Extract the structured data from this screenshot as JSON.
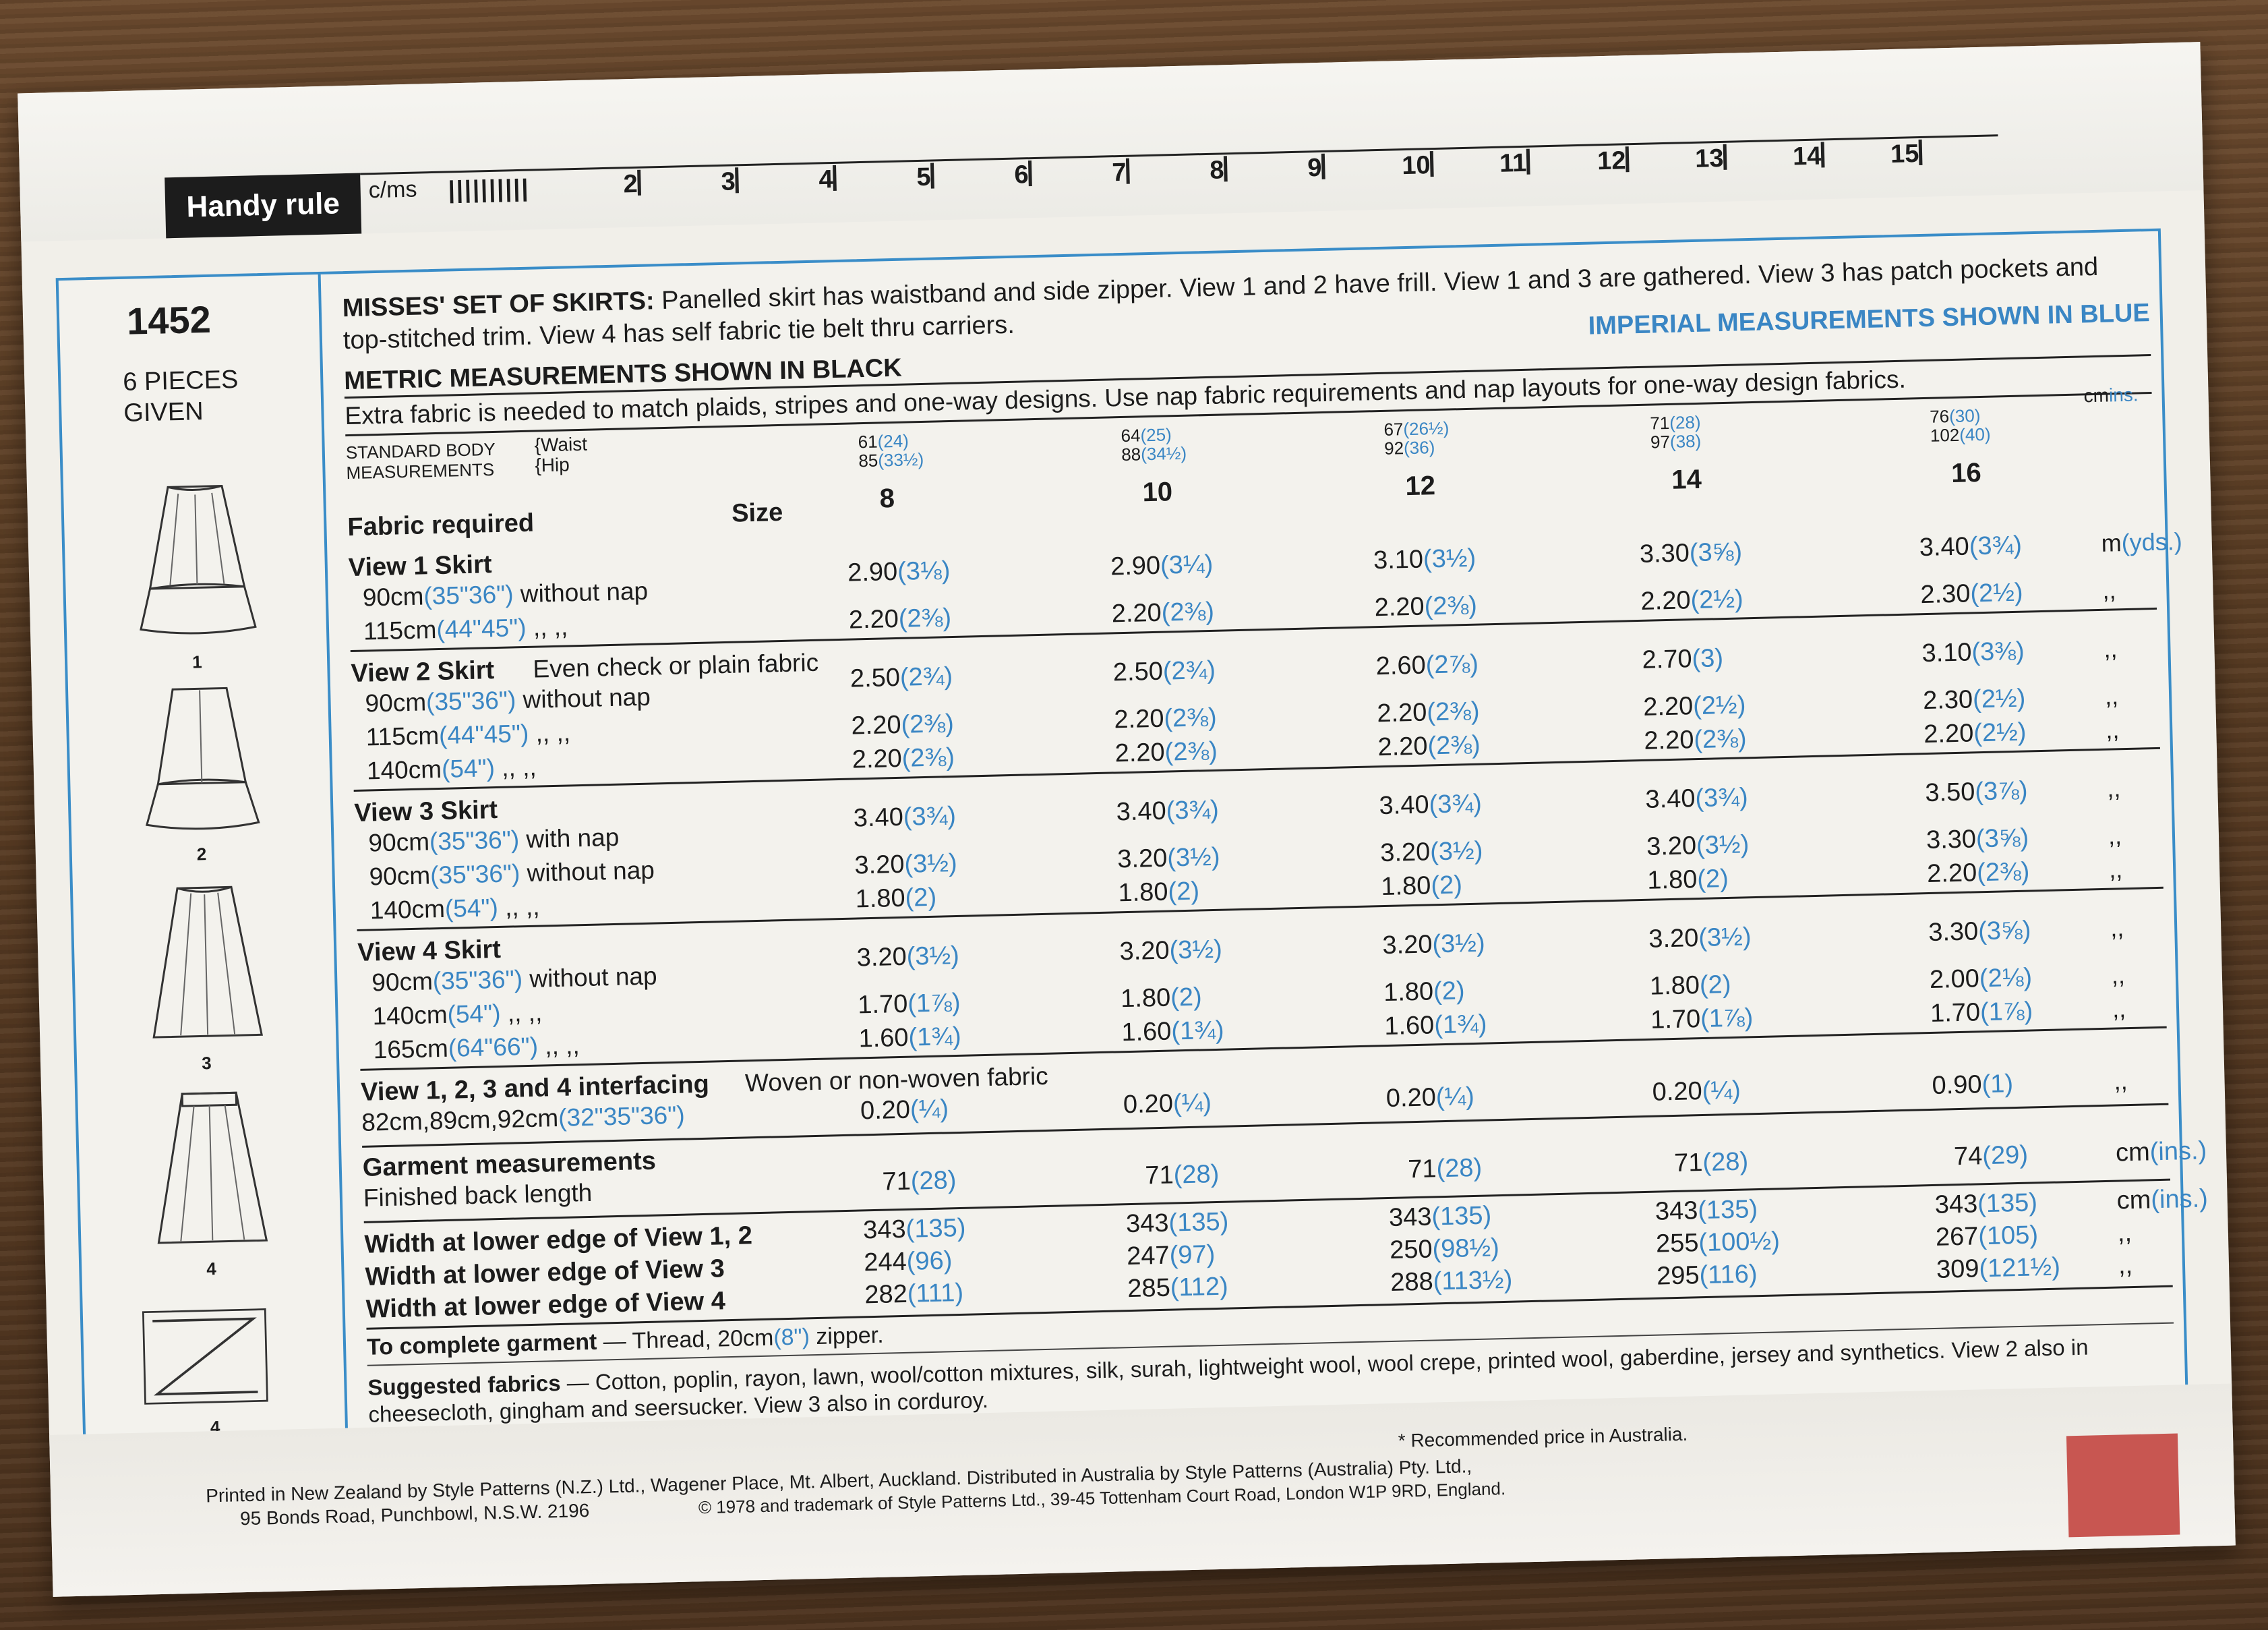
{
  "ruler": {
    "label": "Handy rule",
    "unit": "c/ms",
    "ticks": [
      "2",
      "3",
      "4",
      "5",
      "6",
      "7",
      "8",
      "9",
      "10",
      "11",
      "12",
      "13",
      "14",
      "15"
    ]
  },
  "pattern": {
    "number": "1452",
    "pieces": "6 PIECES GIVEN",
    "view_labels": [
      "1",
      "2",
      "3",
      "4",
      "4"
    ]
  },
  "description": {
    "heading": "MISSES' SET OF SKIRTS:",
    "line1": "Panelled skirt has waistband and side zipper. View 1 and 2 have frill. View 1 and 3 are gathered. View 3 has patch pockets and",
    "line2": "top-stitched trim. View 4 has self fabric tie belt thru carriers.",
    "imperial_note": "IMPERIAL MEASUREMENTS SHOWN IN BLUE",
    "metric_note": "METRIC MEASUREMENTS SHOWN IN BLACK",
    "extra_fabric": "Extra fabric  is needed to match plaids, stripes and one-way designs. Use nap fabric requirements and nap layouts for one-way design fabrics."
  },
  "body_measurements": {
    "label1": "STANDARD BODY",
    "label2": "MEASUREMENTS",
    "waist": "Waist",
    "hip": "Hip",
    "unit_cm": "cm",
    "unit_in": "ins.",
    "sizes": [
      {
        "waist_cm": "61",
        "waist_in": "(24)",
        "hip_cm": "85",
        "hip_in": "(33½)",
        "size": "8"
      },
      {
        "waist_cm": "64",
        "waist_in": "(25)",
        "hip_cm": "88",
        "hip_in": "(34½)",
        "size": "10"
      },
      {
        "waist_cm": "67",
        "waist_in": "(26½)",
        "hip_cm": "92",
        "hip_in": "(36)",
        "size": "12"
      },
      {
        "waist_cm": "71",
        "waist_in": "(28)",
        "hip_cm": "97",
        "hip_in": "(38)",
        "size": "14"
      },
      {
        "waist_cm": "76",
        "waist_in": "(30)",
        "hip_cm": "102",
        "hip_in": "(40)",
        "size": "16"
      }
    ]
  },
  "fabric_required": {
    "label": "Fabric required",
    "size_label": "Size",
    "unit_m": "m",
    "unit_yds": "(yds.)",
    "ditto": ",,",
    "views": [
      {
        "title": "View 1  Skirt",
        "note": "",
        "rows": [
          {
            "width_cm": "90cm",
            "width_in": "(35\"36\")",
            "nap": "without nap",
            "vals": [
              [
                "2.90",
                "(3⅛)"
              ],
              [
                "2.90",
                "(3¼)"
              ],
              [
                "3.10",
                "(3½)"
              ],
              [
                "3.30",
                "(3⅝)"
              ],
              [
                "3.40",
                "(3¾)"
              ]
            ]
          },
          {
            "width_cm": "115cm",
            "width_in": "(44\"45\")",
            "nap": ",,       ,,",
            "vals": [
              [
                "2.20",
                "(2⅜)"
              ],
              [
                "2.20",
                "(2⅜)"
              ],
              [
                "2.20",
                "(2⅜)"
              ],
              [
                "2.20",
                "(2½)"
              ],
              [
                "2.30",
                "(2½)"
              ]
            ]
          }
        ]
      },
      {
        "title": "View 2  Skirt",
        "note": "Even check or plain fabric",
        "rows": [
          {
            "width_cm": "90cm",
            "width_in": "(35\"36\")",
            "nap": "without nap",
            "vals": [
              [
                "2.50",
                "(2¾)"
              ],
              [
                "2.50",
                "(2¾)"
              ],
              [
                "2.60",
                "(2⅞)"
              ],
              [
                "2.70",
                "(3)"
              ],
              [
                "3.10",
                "(3⅜)"
              ]
            ]
          },
          {
            "width_cm": "115cm",
            "width_in": "(44\"45\")",
            "nap": ",,       ,,",
            "vals": [
              [
                "2.20",
                "(2⅜)"
              ],
              [
                "2.20",
                "(2⅜)"
              ],
              [
                "2.20",
                "(2⅜)"
              ],
              [
                "2.20",
                "(2½)"
              ],
              [
                "2.30",
                "(2½)"
              ]
            ]
          },
          {
            "width_cm": "140cm",
            "width_in": "(54\")",
            "nap": ",,       ,,",
            "vals": [
              [
                "2.20",
                "(2⅜)"
              ],
              [
                "2.20",
                "(2⅜)"
              ],
              [
                "2.20",
                "(2⅜)"
              ],
              [
                "2.20",
                "(2⅜)"
              ],
              [
                "2.20",
                "(2½)"
              ]
            ]
          }
        ]
      },
      {
        "title": "View 3  Skirt",
        "note": "",
        "rows": [
          {
            "width_cm": "90cm",
            "width_in": "(35\"36\")",
            "nap": "with nap",
            "vals": [
              [
                "3.40",
                "(3¾)"
              ],
              [
                "3.40",
                "(3¾)"
              ],
              [
                "3.40",
                "(3¾)"
              ],
              [
                "3.40",
                "(3¾)"
              ],
              [
                "3.50",
                "(3⅞)"
              ]
            ]
          },
          {
            "width_cm": "90cm",
            "width_in": "(35\"36\")",
            "nap": "without nap",
            "vals": [
              [
                "3.20",
                "(3½)"
              ],
              [
                "3.20",
                "(3½)"
              ],
              [
                "3.20",
                "(3½)"
              ],
              [
                "3.20",
                "(3½)"
              ],
              [
                "3.30",
                "(3⅝)"
              ]
            ]
          },
          {
            "width_cm": "140cm",
            "width_in": "(54\")",
            "nap": ",,       ,,",
            "vals": [
              [
                "1.80",
                "(2)"
              ],
              [
                "1.80",
                "(2)"
              ],
              [
                "1.80",
                "(2)"
              ],
              [
                "1.80",
                "(2)"
              ],
              [
                "2.20",
                "(2⅜)"
              ]
            ]
          }
        ]
      },
      {
        "title": "View 4  Skirt",
        "note": "",
        "rows": [
          {
            "width_cm": "90cm",
            "width_in": "(35\"36\")",
            "nap": "without nap",
            "vals": [
              [
                "3.20",
                "(3½)"
              ],
              [
                "3.20",
                "(3½)"
              ],
              [
                "3.20",
                "(3½)"
              ],
              [
                "3.20",
                "(3½)"
              ],
              [
                "3.30",
                "(3⅝)"
              ]
            ]
          },
          {
            "width_cm": "140cm",
            "width_in": "(54\")",
            "nap": ",,       ,,",
            "vals": [
              [
                "1.70",
                "(1⅞)"
              ],
              [
                "1.80",
                "(2)"
              ],
              [
                "1.80",
                "(2)"
              ],
              [
                "1.80",
                "(2)"
              ],
              [
                "2.00",
                "(2⅛)"
              ]
            ]
          },
          {
            "width_cm": "165cm",
            "width_in": "(64\"66\")",
            "nap": ",,       ,,",
            "vals": [
              [
                "1.60",
                "(1¾)"
              ],
              [
                "1.60",
                "(1¾)"
              ],
              [
                "1.60",
                "(1¾)"
              ],
              [
                "1.70",
                "(1⅞)"
              ],
              [
                "1.70",
                "(1⅞)"
              ]
            ]
          }
        ]
      }
    ]
  },
  "interfacing": {
    "title": "View 1, 2, 3 and 4 interfacing",
    "note": "Woven or non-woven fabric",
    "width_cm": "82cm,89cm,92cm",
    "width_in": "(32\"35\"36\")",
    "vals": [
      [
        "0.20",
        "(¼)"
      ],
      [
        "0.20",
        "(¼)"
      ],
      [
        "0.20",
        "(¼)"
      ],
      [
        "0.20",
        "(¼)"
      ],
      [
        "0.90",
        "(1)"
      ]
    ]
  },
  "garment": {
    "title": "Garment measurements",
    "back_length_label": "Finished back length",
    "back_length": [
      [
        "71",
        "(28)"
      ],
      [
        "71",
        "(28)"
      ],
      [
        "71",
        "(28)"
      ],
      [
        "71",
        "(28)"
      ],
      [
        "74",
        "(29)"
      ]
    ],
    "unit_cm": "cm",
    "unit_in": "(ins.)",
    "widths": [
      {
        "label": "Width at lower edge of View 1, 2",
        "vals": [
          [
            "343",
            "(135)"
          ],
          [
            "343",
            "(135)"
          ],
          [
            "343",
            "(135)"
          ],
          [
            "343",
            "(135)"
          ],
          [
            "343",
            "(135)"
          ]
        ]
      },
      {
        "label": "Width at lower edge of View 3",
        "vals": [
          [
            "244",
            "(96)"
          ],
          [
            "247",
            "(97)"
          ],
          [
            "250",
            "(98½)"
          ],
          [
            "255",
            "(100½)"
          ],
          [
            "267",
            "(105)"
          ]
        ]
      },
      {
        "label": "Width at lower edge of View 4",
        "vals": [
          [
            "282",
            "(111)"
          ],
          [
            "285",
            "(112)"
          ],
          [
            "288",
            "(113½)"
          ],
          [
            "295",
            "(116)"
          ],
          [
            "309",
            "(121½)"
          ]
        ]
      }
    ]
  },
  "complete": {
    "label": "To complete garment",
    "text_a": " — Thread, 20cm",
    "text_in": "(8\")",
    "text_b": " zipper."
  },
  "suggested": {
    "label": "Suggested fabrics",
    "line1": " — Cotton, poplin, rayon, lawn, wool/cotton mixtures, silk, surah, lightweight wool, wool crepe, printed wool, gaberdine, jersey and synthetics. View 2 also in",
    "line2": "cheesecloth, gingham and seersucker. View 3 also in corduroy."
  },
  "footer": {
    "price_note": "* Recommended price in Australia.",
    "line1": "Printed in New Zealand by Style Patterns (N.Z.) Ltd., Wagener Place, Mt. Albert, Auckland. Distributed in Australia by Style Patterns (Australia) Pty. Ltd.,",
    "line2a": "95 Bonds Road, Punchbowl, N.S.W. 2196",
    "line2b": "© 1978 and trademark of Style Patterns Ltd., 39-45 Tottenham Court Road, London W1P 9RD, England."
  },
  "colors": {
    "imperial_blue": "#3a86c4",
    "price_tag": "#c85651",
    "table_border": "#3a8dc8"
  }
}
